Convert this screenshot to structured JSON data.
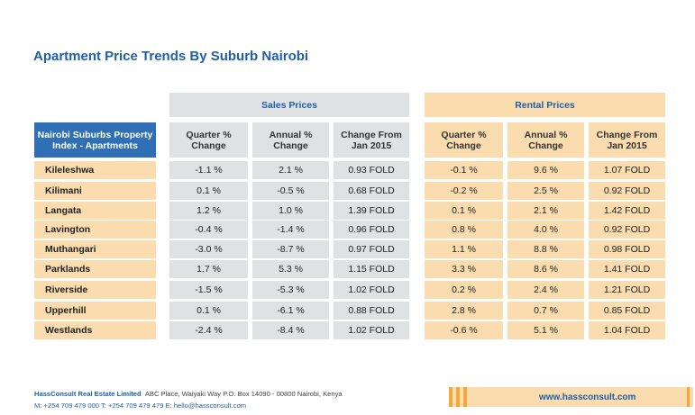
{
  "title": "Apartment Price Trends By Suburb Nairobi",
  "groups": {
    "sales": "Sales Prices",
    "rental": "Rental Prices"
  },
  "index_label": "Nairobi Suburbs Property Index - Apartments",
  "columns": {
    "quarter": "Quarter % Change",
    "annual": "Annual % Change",
    "change": "Change From Jan 2015"
  },
  "rows": [
    {
      "suburb": "Kileleshwa",
      "sales_quarter": "-1.1 %",
      "sales_annual": "2.1 %",
      "sales_change": "0.93 FOLD",
      "rental_quarter": "-0.1 %",
      "rental_annual": "9.6 %",
      "rental_change": "1.07 FOLD"
    },
    {
      "suburb": "Kilimani",
      "sales_quarter": "0.1 %",
      "sales_annual": "-0.5 %",
      "sales_change": "0.68 FOLD",
      "rental_quarter": "-0.2 %",
      "rental_annual": "2.5 %",
      "rental_change": "0.92 FOLD"
    },
    {
      "suburb": "Langata",
      "sales_quarter": "1.2 %",
      "sales_annual": "1.0 %",
      "sales_change": "1.39 FOLD",
      "rental_quarter": "0.1 %",
      "rental_annual": "2.1 %",
      "rental_change": "1.42 FOLD"
    },
    {
      "suburb": "Lavington",
      "sales_quarter": "-0.4 %",
      "sales_annual": "-1.4 %",
      "sales_change": "0.96 FOLD",
      "rental_quarter": "0.8 %",
      "rental_annual": "4.0 %",
      "rental_change": "0.92 FOLD"
    },
    {
      "suburb": "Muthangari",
      "sales_quarter": "-3.0 %",
      "sales_annual": "-8.7 %",
      "sales_change": "0.97 FOLD",
      "rental_quarter": "1.1 %",
      "rental_annual": "8.8 %",
      "rental_change": "0.98 FOLD"
    },
    {
      "suburb": "Parklands",
      "sales_quarter": "1.7 %",
      "sales_annual": "5.3 %",
      "sales_change": "1.15 FOLD",
      "rental_quarter": "3.3 %",
      "rental_annual": "8.6 %",
      "rental_change": "1.41 FOLD"
    },
    {
      "suburb": "Riverside",
      "sales_quarter": "-1.5 %",
      "sales_annual": "-5.3 %",
      "sales_change": "1.02 FOLD",
      "rental_quarter": "0.2 %",
      "rental_annual": "2.4 %",
      "rental_change": "1.21 FOLD"
    },
    {
      "suburb": "Upperhill",
      "sales_quarter": "0.1 %",
      "sales_annual": "-6.1 %",
      "sales_change": "0.88 FOLD",
      "rental_quarter": "2.8 %",
      "rental_annual": "0.7 %",
      "rental_change": "0.85 FOLD"
    },
    {
      "suburb": "Westlands",
      "sales_quarter": "-2.4 %",
      "sales_annual": "-8.4 %",
      "sales_change": "1.02 FOLD",
      "rental_quarter": "-0.6 %",
      "rental_annual": "5.1 %",
      "rental_change": "1.04 FOLD"
    }
  ],
  "footer": {
    "company": "HassConsult Real Estate Limited",
    "address": "ABC Place, Waiyaki Way  P.O. Box 14090 - 00800 Nairobi, Kenya",
    "contact": "M: +254 709 479 000   T: +254 709 479 479   E: hello@hassconsult.com",
    "website": "www.hassconsult.com"
  },
  "colors": {
    "accent": "#1f5fa8",
    "sales_bg": "#dfe1e3",
    "rental_bg": "#fbdcae",
    "index_bg": "#2f6fb6",
    "stripe": "#f2a93b"
  }
}
